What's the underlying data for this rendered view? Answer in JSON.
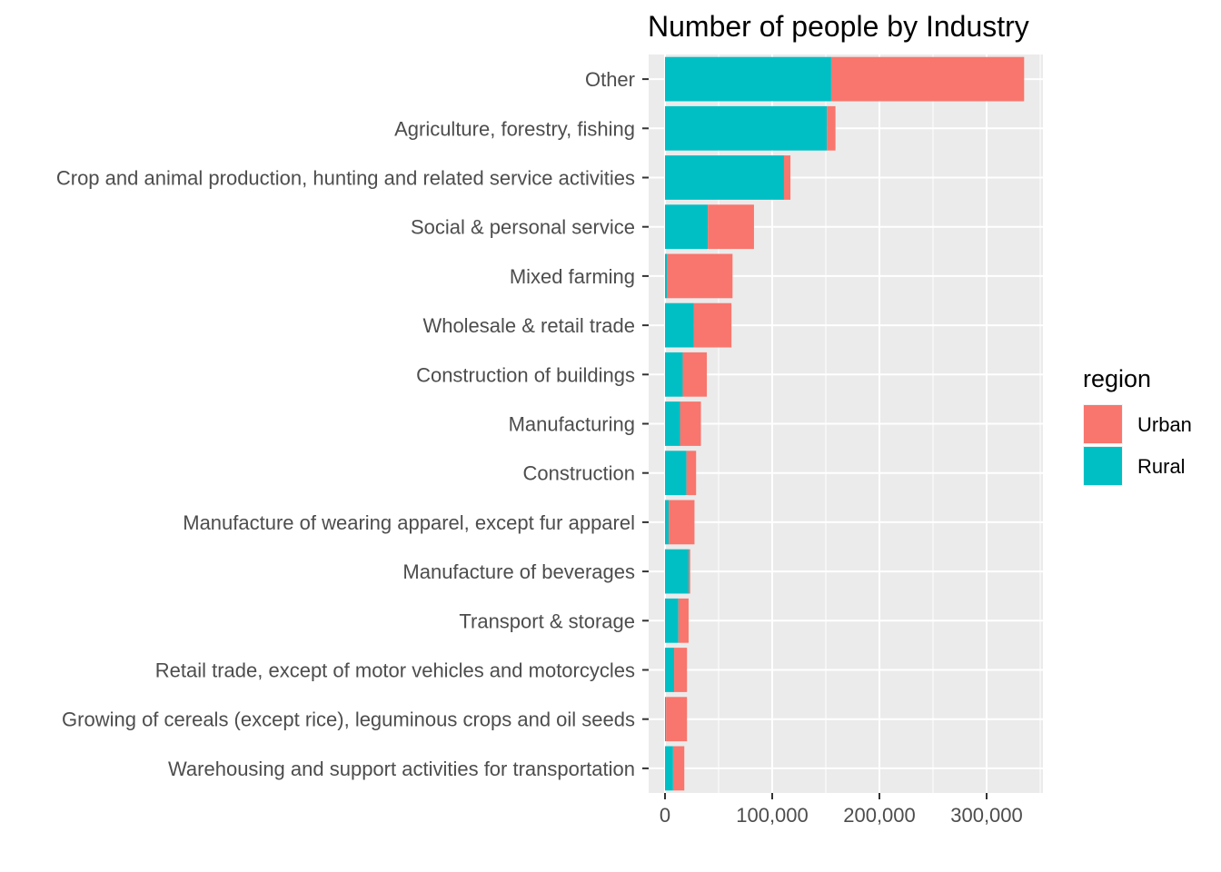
{
  "chart_data": {
    "type": "bar",
    "orientation": "horizontal",
    "stacked": true,
    "title": "Number of people by Industry",
    "xlabel": "",
    "ylabel": "",
    "xlim": [
      -10000,
      351000
    ],
    "x_ticks": [
      0,
      100000,
      200000,
      300000
    ],
    "x_tick_labels": [
      "0",
      "100,000",
      "200,000",
      "300,000"
    ],
    "categories": [
      "Other",
      "Agriculture, forestry, fishing",
      "Crop and animal production, hunting and related service activities",
      "Social & personal service",
      "Mixed farming",
      "Wholesale & retail trade",
      "Construction of buildings",
      "Manufacturing",
      "Construction",
      "Manufacture of wearing apparel, except fur apparel",
      "Manufacture of beverages",
      "Transport & storage",
      "Retail trade, except of motor vehicles and motorcycles",
      "Growing of cereals (except rice), leguminous crops and oil seeds",
      "Warehousing and support activities for transportation"
    ],
    "series": [
      {
        "name": "Rural",
        "color": "#00BFC4",
        "values": [
          155000,
          151000,
          111000,
          40000,
          2000,
          27000,
          16500,
          14000,
          20000,
          3500,
          22000,
          12500,
          8500,
          1000,
          7500
        ]
      },
      {
        "name": "Urban",
        "color": "#F8766D",
        "values": [
          180000,
          8000,
          6000,
          43000,
          61000,
          35000,
          22500,
          19500,
          9000,
          24000,
          1500,
          9500,
          12000,
          19500,
          10500
        ]
      }
    ],
    "legend": {
      "title": "region",
      "position": "right",
      "entries": [
        "Urban",
        "Rural"
      ]
    },
    "grid": true,
    "panel_background": "#EBEBEB",
    "grid_color": "#FFFFFF"
  }
}
